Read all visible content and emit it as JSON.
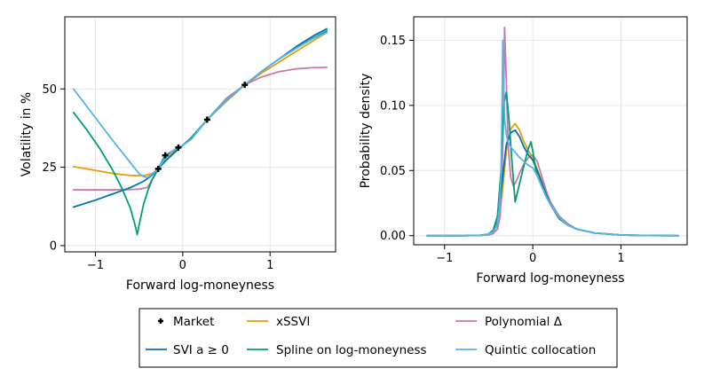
{
  "legend": {
    "items": [
      {
        "label": "Market",
        "kind": "marker",
        "color": "#000000"
      },
      {
        "label": "xSSVI",
        "kind": "line",
        "color": "#E69F00"
      },
      {
        "label": "Polynomial Δ",
        "kind": "line",
        "color": "#CC79A7"
      },
      {
        "label": "SVI a ≥ 0",
        "kind": "line",
        "color": "#0072B2"
      },
      {
        "label": "Spline on log-moneyness",
        "kind": "line",
        "color": "#009E73"
      },
      {
        "label": "Quintic collocation",
        "kind": "line",
        "color": "#56B4E9"
      }
    ]
  },
  "chart_data": [
    {
      "type": "line",
      "xlabel": "Forward log-moneyness",
      "ylabel": "Volatility in %",
      "xlim": [
        -1.35,
        1.75
      ],
      "ylim": [
        -2,
        73
      ],
      "xticks": [
        -1,
        0,
        1
      ],
      "yticks": [
        0,
        25,
        50
      ],
      "xtick_labels": [
        "−1",
        "0",
        "1"
      ],
      "ytick_labels": [
        "0",
        "25",
        "50"
      ],
      "grid": true,
      "market": {
        "x": [
          -0.28,
          -0.2,
          -0.05,
          0.28,
          0.71
        ],
        "y": [
          24.5,
          28.8,
          31.3,
          40.2,
          51.3
        ]
      },
      "series": [
        {
          "name": "xSSVI",
          "color": "#E69F00",
          "x": [
            -1.25,
            -1.0,
            -0.8,
            -0.6,
            -0.45,
            -0.35,
            -0.28,
            -0.2,
            -0.1,
            0.0,
            0.1,
            0.28,
            0.5,
            0.71,
            0.9,
            1.1,
            1.3,
            1.5,
            1.65
          ],
          "y": [
            25.2,
            24.0,
            23.0,
            22.4,
            22.3,
            23.0,
            24.5,
            27.0,
            30.0,
            32.0,
            34.0,
            40.2,
            46.0,
            51.3,
            55.0,
            58.5,
            62.0,
            65.5,
            68.0
          ]
        },
        {
          "name": "Polynomial Δ",
          "color": "#CC79A7",
          "x": [
            -1.25,
            -1.0,
            -0.8,
            -0.6,
            -0.5,
            -0.4,
            -0.28,
            -0.2,
            -0.1,
            0.0,
            0.1,
            0.28,
            0.5,
            0.71,
            0.9,
            1.1,
            1.3,
            1.5,
            1.65
          ],
          "y": [
            17.8,
            17.8,
            17.8,
            17.9,
            18.0,
            18.6,
            24.5,
            28.8,
            30.5,
            32.0,
            34.5,
            40.2,
            47.0,
            51.3,
            53.8,
            55.5,
            56.4,
            56.8,
            56.9
          ]
        },
        {
          "name": "SVI a ≥ 0",
          "color": "#0072B2",
          "x": [
            -1.25,
            -1.0,
            -0.8,
            -0.6,
            -0.45,
            -0.35,
            -0.28,
            -0.2,
            -0.1,
            0.0,
            0.1,
            0.28,
            0.5,
            0.71,
            0.9,
            1.1,
            1.3,
            1.5,
            1.65
          ],
          "y": [
            12.3,
            14.5,
            16.5,
            18.5,
            20.5,
            22.5,
            24.5,
            27.0,
            29.5,
            32.0,
            34.3,
            40.2,
            46.5,
            51.3,
            55.5,
            59.5,
            63.5,
            67.0,
            69.2
          ]
        },
        {
          "name": "Spline on log-moneyness",
          "color": "#009E73",
          "x": [
            -1.25,
            -1.1,
            -0.95,
            -0.8,
            -0.7,
            -0.6,
            -0.55,
            -0.52,
            -0.5,
            -0.45,
            -0.4,
            -0.35,
            -0.28,
            -0.2,
            -0.1,
            0.0,
            0.1,
            0.28,
            0.5,
            0.71,
            0.9,
            1.1,
            1.3,
            1.5,
            1.65
          ],
          "y": [
            42.5,
            37.0,
            31.0,
            24.0,
            18.5,
            12.0,
            7.0,
            3.5,
            6.5,
            13.0,
            17.5,
            21.0,
            24.5,
            28.8,
            30.2,
            32.0,
            34.5,
            40.2,
            46.5,
            51.3,
            55.5,
            59.5,
            63.0,
            66.3,
            68.5
          ]
        },
        {
          "name": "Quintic collocation",
          "color": "#56B4E9",
          "x": [
            -1.25,
            -1.1,
            -0.95,
            -0.8,
            -0.7,
            -0.6,
            -0.5,
            -0.45,
            -0.4,
            -0.35,
            -0.28,
            -0.2,
            -0.1,
            0.0,
            0.1,
            0.28,
            0.5,
            0.71,
            0.9,
            1.1,
            1.3,
            1.5,
            1.65
          ],
          "y": [
            50.0,
            44.5,
            39.0,
            33.5,
            30.0,
            26.5,
            23.0,
            22.0,
            21.8,
            22.8,
            24.5,
            28.0,
            30.5,
            32.0,
            34.0,
            40.2,
            46.5,
            51.3,
            55.5,
            59.5,
            63.0,
            66.2,
            68.0
          ]
        }
      ]
    },
    {
      "type": "line",
      "xlabel": "Forward log-moneyness",
      "ylabel": "Probability density",
      "xlim": [
        -1.35,
        1.75
      ],
      "ylim": [
        -0.007,
        0.168
      ],
      "xticks": [
        -1,
        0,
        1
      ],
      "yticks": [
        0.0,
        0.05,
        0.1,
        0.15
      ],
      "xtick_labels": [
        "−1",
        "0",
        "1"
      ],
      "ytick_labels": [
        "0.00",
        "0.05",
        "0.10",
        "0.15"
      ],
      "grid": true,
      "series": [
        {
          "name": "xSSVI",
          "color": "#E69F00",
          "x": [
            -1.2,
            -0.8,
            -0.6,
            -0.5,
            -0.45,
            -0.4,
            -0.35,
            -0.3,
            -0.25,
            -0.2,
            -0.15,
            -0.1,
            -0.05,
            0.0,
            0.05,
            0.1,
            0.15,
            0.2,
            0.3,
            0.4,
            0.5,
            0.7,
            1.0,
            1.3,
            1.65
          ],
          "y": [
            0,
            0,
            0.0002,
            0.001,
            0.003,
            0.008,
            0.03,
            0.065,
            0.082,
            0.086,
            0.081,
            0.072,
            0.065,
            0.06,
            0.051,
            0.042,
            0.033,
            0.025,
            0.014,
            0.008,
            0.005,
            0.002,
            0.0005,
            0.0001,
            0
          ]
        },
        {
          "name": "Polynomial Δ",
          "color": "#CC79A7",
          "x": [
            -1.2,
            -0.8,
            -0.6,
            -0.5,
            -0.45,
            -0.4,
            -0.37,
            -0.35,
            -0.33,
            -0.32,
            -0.3,
            -0.28,
            -0.25,
            -0.22,
            -0.2,
            -0.15,
            -0.1,
            -0.05,
            0.0,
            0.05,
            0.1,
            0.15,
            0.2,
            0.3,
            0.4,
            0.5,
            0.7,
            1.0,
            1.3,
            1.65
          ],
          "y": [
            0,
            0,
            0.0001,
            0.0005,
            0.0015,
            0.005,
            0.015,
            0.04,
            0.1,
            0.16,
            0.12,
            0.07,
            0.045,
            0.038,
            0.04,
            0.048,
            0.055,
            0.06,
            0.062,
            0.057,
            0.046,
            0.035,
            0.026,
            0.015,
            0.009,
            0.005,
            0.002,
            0.0005,
            0.0001,
            0
          ]
        },
        {
          "name": "SVI a ≥ 0",
          "color": "#0072B2",
          "x": [
            -1.2,
            -0.8,
            -0.6,
            -0.5,
            -0.45,
            -0.4,
            -0.35,
            -0.3,
            -0.25,
            -0.2,
            -0.15,
            -0.1,
            -0.05,
            0.0,
            0.05,
            0.1,
            0.15,
            0.2,
            0.3,
            0.4,
            0.5,
            0.7,
            1.0,
            1.3,
            1.65
          ],
          "y": [
            0,
            0,
            0.0002,
            0.0012,
            0.004,
            0.012,
            0.04,
            0.07,
            0.079,
            0.081,
            0.076,
            0.068,
            0.062,
            0.058,
            0.05,
            0.041,
            0.032,
            0.024,
            0.013,
            0.008,
            0.005,
            0.002,
            0.0005,
            0.0001,
            0
          ]
        },
        {
          "name": "Spline on log-moneyness",
          "color": "#009E73",
          "x": [
            -1.2,
            -0.8,
            -0.6,
            -0.5,
            -0.45,
            -0.4,
            -0.36,
            -0.33,
            -0.3,
            -0.27,
            -0.24,
            -0.2,
            -0.15,
            -0.1,
            -0.05,
            -0.02,
            0.0,
            0.03,
            0.05,
            0.1,
            0.15,
            0.2,
            0.3,
            0.4,
            0.5,
            0.7,
            1.0,
            1.3,
            1.65
          ],
          "y": [
            0,
            0,
            0.0002,
            0.0012,
            0.004,
            0.015,
            0.05,
            0.1,
            0.11,
            0.09,
            0.06,
            0.026,
            0.04,
            0.054,
            0.067,
            0.072,
            0.065,
            0.052,
            0.046,
            0.038,
            0.031,
            0.024,
            0.013,
            0.008,
            0.005,
            0.002,
            0.0005,
            0.0001,
            0
          ]
        },
        {
          "name": "Quintic collocation",
          "color": "#56B4E9",
          "x": [
            -1.2,
            -0.8,
            -0.6,
            -0.5,
            -0.45,
            -0.42,
            -0.4,
            -0.38,
            -0.36,
            -0.35,
            -0.34,
            -0.33,
            -0.32,
            -0.3,
            -0.28,
            -0.25,
            -0.2,
            -0.15,
            -0.1,
            -0.05,
            0.0,
            0.05,
            0.1,
            0.15,
            0.2,
            0.3,
            0.4,
            0.5,
            0.7,
            1.0,
            1.3,
            1.65
          ],
          "y": [
            0,
            0,
            0.0002,
            0.001,
            0.003,
            0.006,
            0.01,
            0.02,
            0.045,
            0.09,
            0.15,
            0.12,
            0.09,
            0.078,
            0.072,
            0.068,
            0.064,
            0.06,
            0.057,
            0.054,
            0.052,
            0.046,
            0.038,
            0.03,
            0.024,
            0.014,
            0.008,
            0.005,
            0.002,
            0.0005,
            0.0001,
            0
          ]
        }
      ]
    }
  ]
}
